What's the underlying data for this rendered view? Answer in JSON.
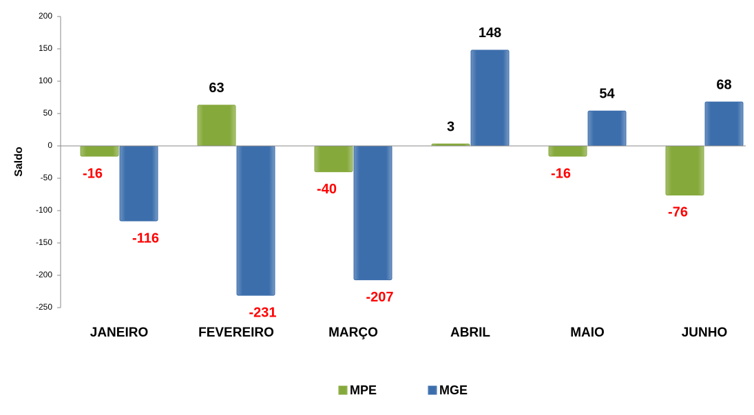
{
  "chart_data": {
    "type": "bar",
    "y_label": "Saldo",
    "categories": [
      "JANEIRO",
      "FEVEREIRO",
      "MARÇO",
      "ABRIL",
      "MAIO",
      "JUNHO"
    ],
    "series": [
      {
        "name": "MPE",
        "color": "#86a93c",
        "values": [
          -16,
          63,
          -40,
          3,
          -16,
          -76
        ]
      },
      {
        "name": "MGE",
        "color": "#3c6eac",
        "values": [
          -116,
          -231,
          -207,
          148,
          54,
          68
        ]
      }
    ],
    "ylim": [
      -250,
      200
    ],
    "yticks": [
      -250,
      -200,
      -150,
      -100,
      -50,
      0,
      50,
      100,
      150,
      200
    ],
    "positive_label_color": "#000000",
    "negative_label_color": "#ff0000",
    "legend": "bottom"
  }
}
